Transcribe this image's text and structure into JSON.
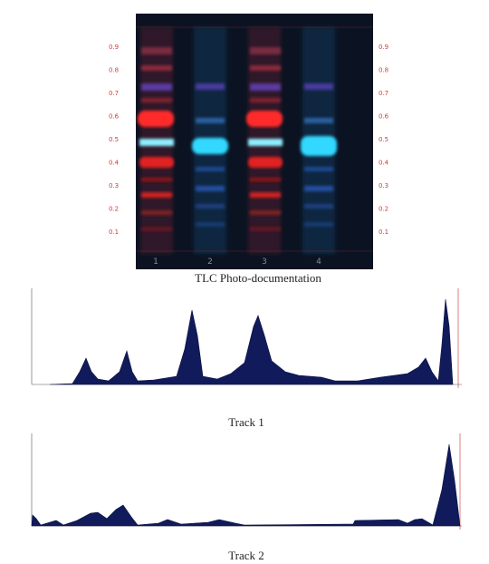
{
  "plate": {
    "rf_left": [
      "0.9",
      "0.8",
      "0.7",
      "0.6",
      "0.5",
      "0.4",
      "0.3",
      "0.2",
      "0.1"
    ],
    "rf_right": [
      "0.9",
      "0.8",
      "0.7",
      "0.6",
      "0.5",
      "0.4",
      "0.3",
      "0.2",
      "0.1"
    ],
    "lanes": [
      "1",
      "2",
      "3",
      "4"
    ],
    "caption": "TLC Photo-documentation"
  },
  "track1": {
    "caption": "Track 1"
  },
  "track2": {
    "caption": "Track 2"
  }
}
